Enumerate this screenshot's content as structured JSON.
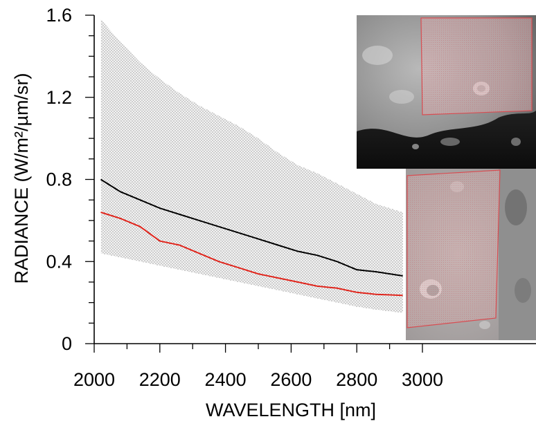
{
  "chart_data": {
    "type": "area",
    "title": "",
    "xlabel": "WAVELENGTH [nm]",
    "ylabel": "RADIANCE (W/m²/µm/sr)",
    "xlim": [
      2000,
      3000
    ],
    "ylim": [
      0,
      1.6
    ],
    "x_ticks": [
      2000,
      2200,
      2400,
      2600,
      2800,
      3000
    ],
    "x_tick_labels": [
      "2000",
      "2200",
      "2400",
      "2600",
      "2800",
      "3000"
    ],
    "y_ticks": [
      0,
      0.4,
      0.8,
      1.2,
      1.6
    ],
    "y_tick_labels": [
      "0",
      "0.4",
      "0.8",
      "1.2",
      "1.6"
    ],
    "grid": false,
    "legend": "none",
    "x": [
      2020,
      2080,
      2140,
      2200,
      2260,
      2320,
      2380,
      2440,
      2500,
      2560,
      2620,
      2680,
      2740,
      2800,
      2860,
      2940
    ],
    "series": [
      {
        "kind": "band",
        "color": "#555555",
        "upper": [
          1.58,
          1.47,
          1.37,
          1.29,
          1.22,
          1.16,
          1.11,
          1.06,
          1.0,
          0.93,
          0.87,
          0.83,
          0.78,
          0.73,
          0.68,
          0.64
        ],
        "lower": [
          0.44,
          0.42,
          0.4,
          0.38,
          0.36,
          0.34,
          0.32,
          0.3,
          0.28,
          0.26,
          0.24,
          0.22,
          0.2,
          0.18,
          0.165,
          0.15
        ]
      },
      {
        "kind": "line",
        "color": "#000000",
        "values": [
          0.8,
          0.74,
          0.7,
          0.66,
          0.63,
          0.6,
          0.57,
          0.54,
          0.51,
          0.48,
          0.45,
          0.43,
          0.4,
          0.36,
          0.35,
          0.33
        ]
      },
      {
        "kind": "line",
        "color": "#e0241b",
        "values": [
          0.64,
          0.61,
          0.57,
          0.5,
          0.48,
          0.44,
          0.4,
          0.37,
          0.34,
          0.32,
          0.3,
          0.28,
          0.27,
          0.25,
          0.24,
          0.235
        ]
      }
    ],
    "insets": [
      {
        "content": "lunar surface image with highlighted region",
        "highlight_color": "#d94b50"
      },
      {
        "content": "lunar surface image with highlighted region",
        "highlight_color": "#d94b50"
      }
    ]
  }
}
